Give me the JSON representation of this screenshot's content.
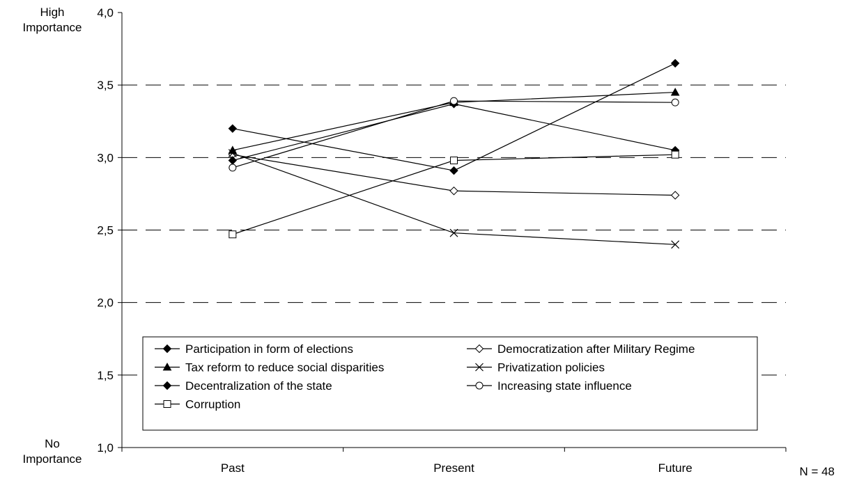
{
  "chart_data": {
    "type": "line",
    "categories": [
      "Past",
      "Present",
      "Future"
    ],
    "ylim": [
      1.0,
      4.0
    ],
    "y_ticks": [
      "1,0",
      "1,5",
      "2,0",
      "2,5",
      "3,0",
      "3,5",
      "4,0"
    ],
    "y_top_label": [
      "High",
      "Importance"
    ],
    "y_bottom_label": [
      "No",
      "Importance"
    ],
    "grid": "dashed horizontal",
    "legend_position": "bottom-inside",
    "series": [
      {
        "name": "Participation in form of elections",
        "marker": "diamond-filled",
        "values": [
          3.2,
          2.91,
          3.65
        ]
      },
      {
        "name": "Democratization after Military Regime",
        "marker": "diamond-open",
        "values": [
          3.02,
          2.77,
          2.74
        ]
      },
      {
        "name": "Tax reform to reduce social disparities",
        "marker": "triangle-filled",
        "values": [
          3.05,
          3.38,
          3.45
        ]
      },
      {
        "name": "Privatization policies",
        "marker": "x",
        "values": [
          3.03,
          2.48,
          2.4
        ]
      },
      {
        "name": "Decentralization of the state",
        "marker": "diamond-filled",
        "values": [
          2.98,
          3.37,
          3.05
        ]
      },
      {
        "name": "Increasing state influence",
        "marker": "circle-open",
        "values": [
          2.93,
          3.39,
          3.38
        ]
      },
      {
        "name": "Corruption",
        "marker": "square-open",
        "values": [
          2.47,
          2.98,
          3.02
        ]
      }
    ],
    "note": "N = 48"
  }
}
